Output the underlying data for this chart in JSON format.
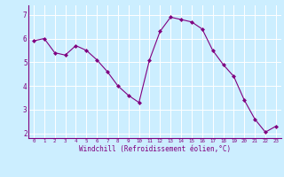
{
  "x": [
    0,
    1,
    2,
    3,
    4,
    5,
    6,
    7,
    8,
    9,
    10,
    11,
    12,
    13,
    14,
    15,
    16,
    17,
    18,
    19,
    20,
    21,
    22,
    23
  ],
  "y": [
    5.9,
    6.0,
    5.4,
    5.3,
    5.7,
    5.5,
    5.1,
    4.6,
    4.0,
    3.6,
    3.3,
    5.1,
    6.3,
    6.9,
    6.8,
    6.7,
    6.4,
    5.5,
    4.9,
    4.4,
    3.4,
    2.6,
    2.05,
    2.3
  ],
  "line_color": "#800080",
  "marker": "D",
  "marker_size": 2.0,
  "bg_color": "#cceeff",
  "grid_color": "#ffffff",
  "xlabel": "Windchill (Refroidissement éolien,°C)",
  "xlabel_color": "#800080",
  "tick_color": "#800080",
  "ylim": [
    1.8,
    7.4
  ],
  "yticks": [
    2,
    3,
    4,
    5,
    6,
    7
  ],
  "xlim": [
    -0.5,
    23.5
  ],
  "xticks": [
    0,
    1,
    2,
    3,
    4,
    5,
    6,
    7,
    8,
    9,
    10,
    11,
    12,
    13,
    14,
    15,
    16,
    17,
    18,
    19,
    20,
    21,
    22,
    23
  ]
}
